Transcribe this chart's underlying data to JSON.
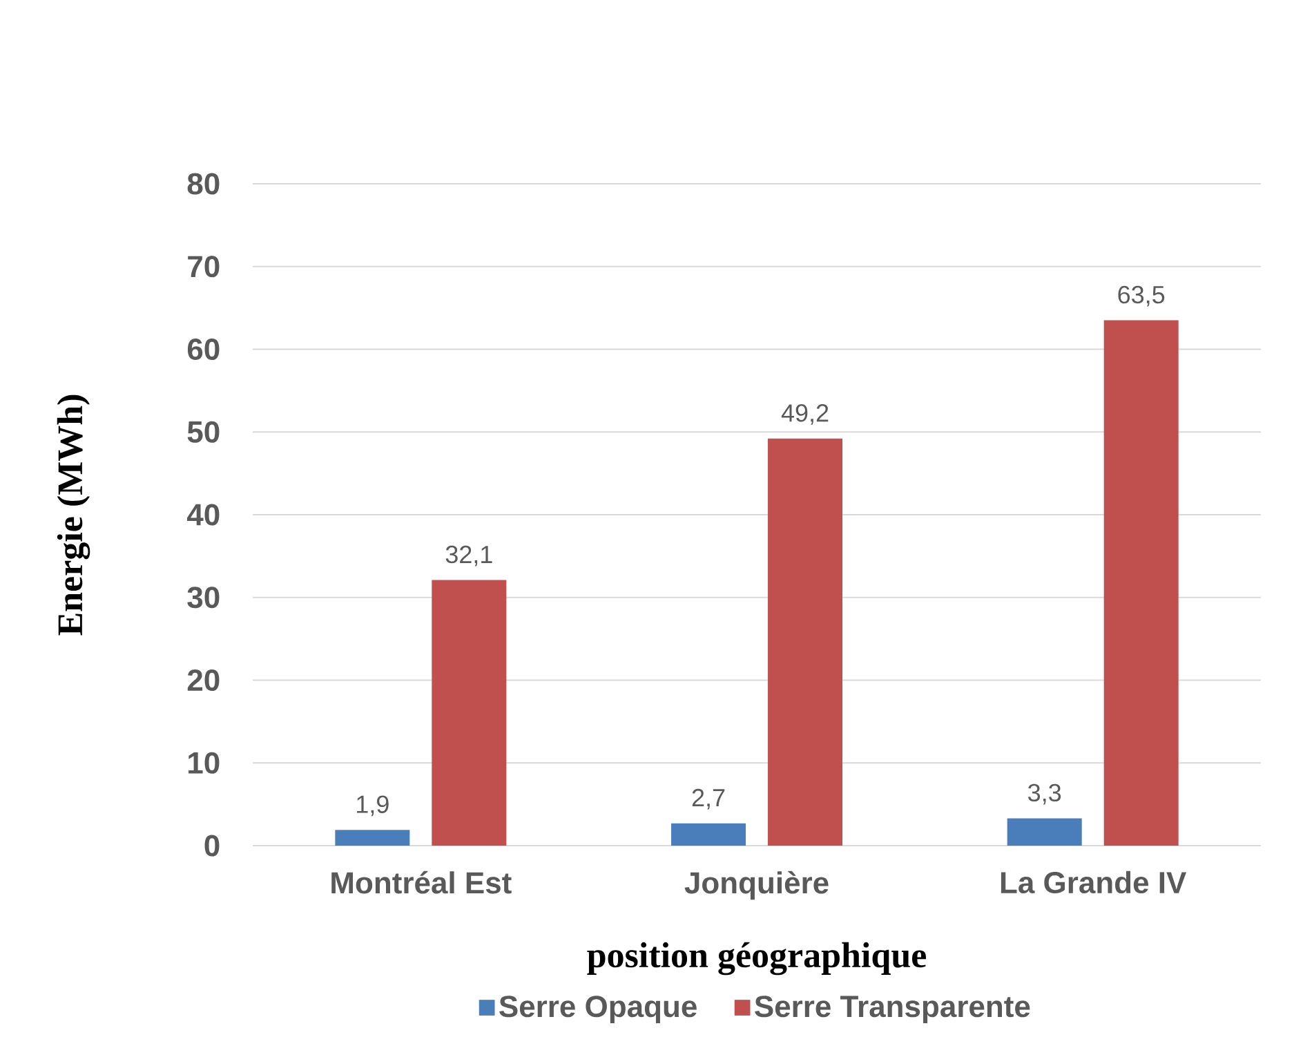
{
  "chart_data": {
    "type": "bar",
    "xlabel": "position géographique",
    "ylabel": "Energie (MWh)",
    "categories": [
      "Montréal Est",
      "Jonquière",
      "La Grande IV"
    ],
    "series": [
      {
        "name": "Serre Opaque",
        "color": "#4a7ebb",
        "values": [
          1.9,
          2.7,
          3.3
        ],
        "value_labels": [
          "1,9",
          "2,7",
          "3,3"
        ]
      },
      {
        "name": "Serre Transparente",
        "color": "#c0504d",
        "values": [
          32.1,
          49.2,
          63.5
        ],
        "value_labels": [
          "32,1",
          "49,2",
          "63,5"
        ]
      }
    ],
    "ylim": [
      0,
      80
    ],
    "yticks": [
      0,
      10,
      20,
      30,
      40,
      50,
      60,
      70,
      80
    ],
    "grid": "y",
    "legend": "bottom"
  }
}
